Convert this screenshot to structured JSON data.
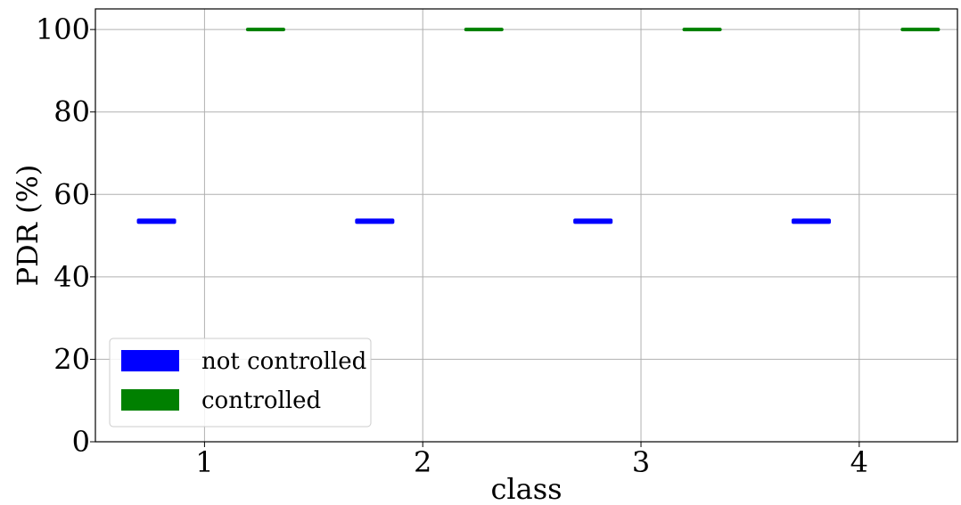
{
  "chart_data": {
    "type": "box",
    "xlabel": "class",
    "ylabel": "PDR  (%)",
    "categories": [
      "1",
      "2",
      "3",
      "4"
    ],
    "x_ticks": [
      "1",
      "2",
      "3",
      "4"
    ],
    "y_ticks": [
      "0",
      "20",
      "40",
      "60",
      "80",
      "100"
    ],
    "ylim": [
      0,
      105
    ],
    "xlim": [
      0.5,
      4.45
    ],
    "grid": true,
    "legend_position": "lower-left",
    "series": [
      {
        "name": "not controlled",
        "color": "#0000ff",
        "values": [
          53.5,
          53.5,
          53.5,
          53.5
        ]
      },
      {
        "name": "controlled",
        "color": "#008000",
        "values": [
          100,
          100,
          100,
          100
        ]
      }
    ]
  }
}
